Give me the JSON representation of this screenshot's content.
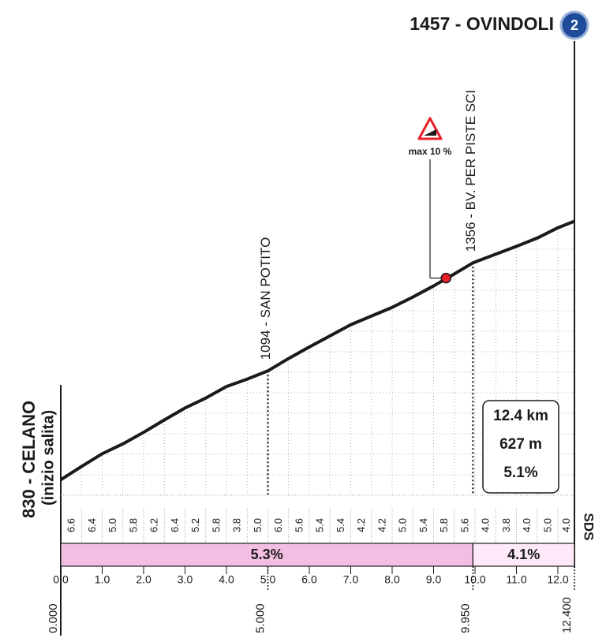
{
  "chart_data": {
    "type": "area",
    "title": "1457 - OVINDOLI",
    "finish_badge": "2",
    "start_label": "830 - CELANO",
    "start_note": "(inizio salita)",
    "x": [
      0,
      0.5,
      1,
      1.5,
      2,
      2.5,
      3,
      3.5,
      4,
      4.5,
      5,
      5.5,
      6,
      6.5,
      7,
      7.5,
      8,
      8.5,
      9,
      9.5,
      9.95,
      10.5,
      11,
      11.5,
      12,
      12.4
    ],
    "values": [
      830,
      862,
      893,
      917,
      945,
      975,
      1004,
      1028,
      1056,
      1074,
      1094,
      1124,
      1152,
      1179,
      1206,
      1227,
      1248,
      1273,
      1300,
      1329,
      1356,
      1377,
      1396,
      1416,
      1441,
      1457
    ],
    "color": "#1a1a1a",
    "xlim": [
      0,
      12.4
    ],
    "ylim": [
      800,
      1500
    ],
    "xticks": [
      {
        "value": 0,
        "label": "0.0"
      },
      {
        "value": 1,
        "label": "1.0"
      },
      {
        "value": 2,
        "label": "2.0"
      },
      {
        "value": 3,
        "label": "3.0"
      },
      {
        "value": 4,
        "label": "4.0"
      },
      {
        "value": 5,
        "label": "5.0"
      },
      {
        "value": 6,
        "label": "6.0"
      },
      {
        "value": 7,
        "label": "7.0"
      },
      {
        "value": 8,
        "label": "8.0"
      },
      {
        "value": 9,
        "label": "9.0"
      },
      {
        "value": 10,
        "label": "10.0"
      },
      {
        "value": 11,
        "label": "11.0"
      },
      {
        "value": 12,
        "label": "12.0"
      }
    ],
    "gradient_labels": [
      "6.6",
      "6.4",
      "5.0",
      "5.8",
      "6.2",
      "6.4",
      "5.2",
      "5.8",
      "3.8",
      "5.0",
      "6.0",
      "5.6",
      "5.4",
      "5.4",
      "4.2",
      "4.2",
      "5.0",
      "5.4",
      "5.8",
      "5.6",
      "4.0",
      "3.8",
      "4.0",
      "5.0",
      "4.0"
    ],
    "sections": [
      {
        "from": 0,
        "to": 9.95,
        "label": "5.3%",
        "color": "#f2bfe3"
      },
      {
        "from": 9.95,
        "to": 12.4,
        "label": "4.1%",
        "color": "#fde9f7"
      }
    ],
    "km_markers": [
      {
        "value": 0,
        "label": "0.000"
      },
      {
        "value": 5,
        "label": "5.000"
      },
      {
        "value": 9.95,
        "label": "9.950"
      },
      {
        "value": 12.4,
        "label": "12.400"
      }
    ],
    "waypoints": [
      {
        "x": 5,
        "label": "1094 - SAN POTITO"
      },
      {
        "x": 9.95,
        "label": "1356 - BV. PER PISTE SCI"
      }
    ],
    "max_gradient": {
      "x": 9.3,
      "y": 1319,
      "label": "max 10 %"
    },
    "summary": [
      "12.4 km",
      "627 m",
      "5.1%"
    ],
    "logo": "SDS"
  }
}
